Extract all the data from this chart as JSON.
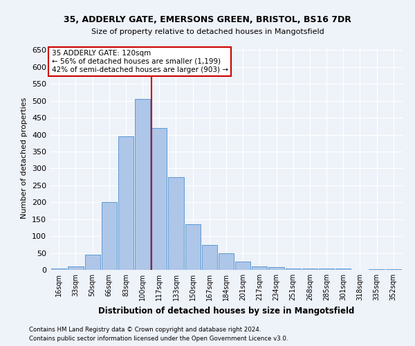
{
  "title_line1": "35, ADDERLY GATE, EMERSONS GREEN, BRISTOL, BS16 7DR",
  "title_line2": "Size of property relative to detached houses in Mangotsfield",
  "xlabel": "Distribution of detached houses by size in Mangotsfield",
  "ylabel": "Number of detached properties",
  "categories": [
    "16sqm",
    "33sqm",
    "50sqm",
    "66sqm",
    "83sqm",
    "100sqm",
    "117sqm",
    "133sqm",
    "150sqm",
    "167sqm",
    "184sqm",
    "201sqm",
    "217sqm",
    "234sqm",
    "251sqm",
    "268sqm",
    "285sqm",
    "301sqm",
    "318sqm",
    "335sqm",
    "352sqm"
  ],
  "values": [
    5,
    10,
    45,
    200,
    395,
    505,
    420,
    275,
    135,
    73,
    50,
    25,
    10,
    8,
    5,
    5,
    5,
    5,
    0,
    3,
    3
  ],
  "bar_color": "#aec6e8",
  "bar_edge_color": "#5b9bd5",
  "vline_index": 6,
  "vline_color": "#cc0000",
  "annotation_title": "35 ADDERLY GATE: 120sqm",
  "annotation_line1": "← 56% of detached houses are smaller (1,199)",
  "annotation_line2": "42% of semi-detached houses are larger (903) →",
  "annotation_box_color": "#ffffff",
  "annotation_box_edge": "#cc0000",
  "ylim": [
    0,
    660
  ],
  "yticks": [
    0,
    50,
    100,
    150,
    200,
    250,
    300,
    350,
    400,
    450,
    500,
    550,
    600,
    650
  ],
  "background_color": "#eef2f9",
  "grid_color": "#ffffff",
  "footer_line1": "Contains HM Land Registry data © Crown copyright and database right 2024.",
  "footer_line2": "Contains public sector information licensed under the Open Government Licence v3.0."
}
